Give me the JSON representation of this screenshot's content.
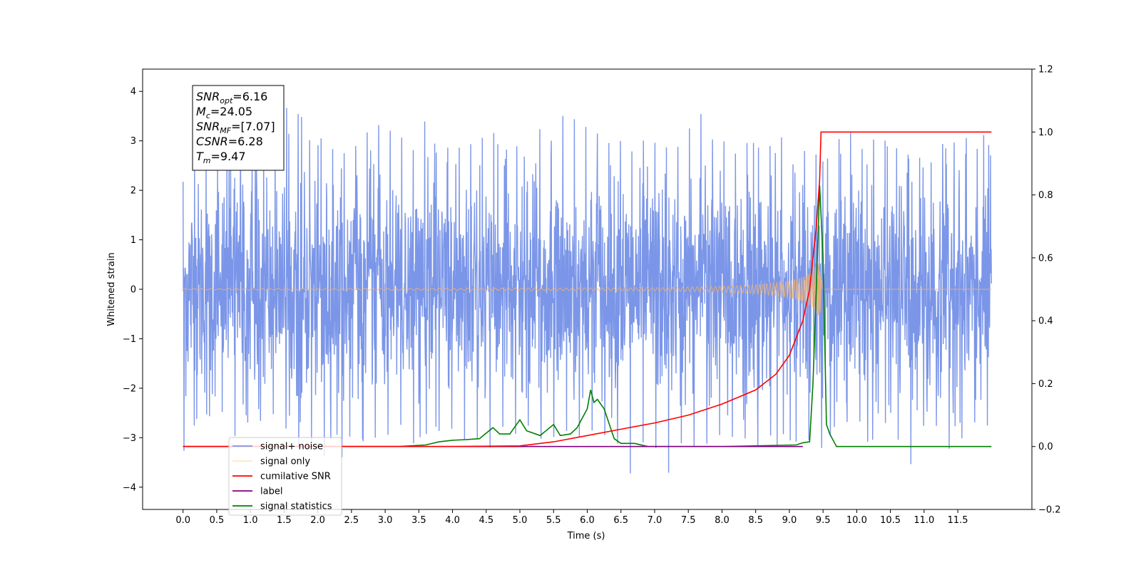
{
  "chart_data": {
    "type": "line",
    "xlabel": "Time (s)",
    "ylabel": "Whitened strain",
    "xlim": [
      -0.6,
      12.6
    ],
    "ylim": [
      -4.45,
      4.45
    ],
    "y2lim": [
      -0.2,
      1.2
    ],
    "x_ticks": [
      "0.0",
      "0.5",
      "1.0",
      "1.5",
      "2.0",
      "2.5",
      "3.0",
      "3.5",
      "4.0",
      "4.5",
      "5.0",
      "5.5",
      "6.0",
      "6.5",
      "7.0",
      "7.5",
      "8.0",
      "8.5",
      "9.0",
      "9.5",
      "10.0",
      "10.5",
      "11.0",
      "11.5"
    ],
    "y_ticks": [
      "−4",
      "−3",
      "−2",
      "−1",
      "0",
      "1",
      "2",
      "3",
      "4"
    ],
    "y2_ticks": [
      "−0.2",
      "0.0",
      "0.2",
      "0.4",
      "0.6",
      "0.8",
      "1.0",
      "1.2"
    ],
    "grid": false,
    "legend_position": "lower-left",
    "annotation": {
      "lines": [
        {
          "sym": "SNR",
          "sub": "opt",
          "val": "=6.16"
        },
        {
          "sym": "M",
          "sub": "c",
          "val": "=24.05"
        },
        {
          "sym": "SNR",
          "sub": "MF",
          "val": "=[7.07]"
        },
        {
          "sym": "CSNR",
          "sub": "",
          "val": "=6.28"
        },
        {
          "sym": "T",
          "sub": "m",
          "val": "=9.47"
        }
      ]
    },
    "legend": [
      {
        "label": "signal+ noise",
        "color": "#7b96e8"
      },
      {
        "label": "signal only",
        "color": "#ffbe66"
      },
      {
        "label": "cumilative SNR",
        "color": "#ff0000"
      },
      {
        "label": "label",
        "color": "#800080"
      },
      {
        "label": "signal statistics",
        "color": "#008000"
      }
    ],
    "series": [
      {
        "name": "signal+ noise",
        "axis": "left",
        "color": "#7b96e8",
        "x_range": [
          0.0,
          12.0
        ],
        "envelope_upper": [
          2.3,
          2.9,
          3.3,
          3.1,
          3.0,
          2.8,
          3.0,
          3.2,
          3.9,
          3.4,
          3.1,
          3.0,
          3.2,
          3.1,
          3.3,
          3.5,
          3.0,
          3.3,
          3.4,
          3.1,
          3.1,
          3.5,
          3.1,
          3.3,
          3.0,
          3.0,
          3.2,
          3.3,
          3.6,
          3.5,
          3.4,
          3.2,
          3.2,
          3.3,
          3.2,
          3.0,
          3.2,
          3.3,
          3.5,
          3.6,
          3.3,
          3.2,
          3.0,
          3.2,
          3.3,
          2.9,
          3.1,
          3.0,
          3.1,
          3.2,
          3.2,
          3.0,
          3.2,
          3.1,
          2.9,
          3.0,
          3.0,
          3.1,
          3.2,
          3.3,
          3.0
        ],
        "envelope_lower": [
          -3.4,
          -2.7,
          -2.9,
          -2.8,
          -3.0,
          -2.9,
          -2.7,
          -3.0,
          -3.3,
          -3.2,
          -3.3,
          -3.5,
          -3.4,
          -3.0,
          -3.4,
          -3.1,
          -3.2,
          -3.1,
          -3.3,
          -3.1,
          -3.0,
          -3.1,
          -3.2,
          -3.3,
          -3.1,
          -3.3,
          -3.1,
          -3.1,
          -3.0,
          -3.2,
          -3.3,
          -3.1,
          -3.5,
          -4.1,
          -3.4,
          -3.2,
          -3.9,
          -3.1,
          -3.3,
          -3.2,
          -3.3,
          -3.1,
          -3.0,
          -3.4,
          -3.2,
          -3.1,
          -3.2,
          -3.4,
          -3.3,
          -2.9,
          -3.0,
          -3.1,
          -3.2,
          -3.0,
          -4.0,
          -3.2,
          -3.0,
          -3.6,
          -3.1,
          -3.1,
          -3.1
        ]
      },
      {
        "name": "signal only",
        "axis": "left",
        "color": "#f5b16a",
        "x": [
          0.0,
          7.0,
          8.0,
          8.5,
          9.0,
          9.2,
          9.3,
          9.4,
          9.45,
          9.5,
          12.0
        ],
        "amplitude": [
          0.01,
          0.03,
          0.06,
          0.09,
          0.17,
          0.25,
          0.33,
          0.5,
          0.55,
          0.0,
          0.0
        ]
      },
      {
        "name": "cumilative SNR",
        "axis": "right",
        "color": "#ff0000",
        "x": [
          0.0,
          4.0,
          5.0,
          5.5,
          6.0,
          6.5,
          7.0,
          7.5,
          8.0,
          8.5,
          8.8,
          9.0,
          9.2,
          9.3,
          9.4,
          9.45,
          9.47,
          9.48,
          12.0
        ],
        "y": [
          0.0,
          0.0,
          0.002,
          0.015,
          0.035,
          0.055,
          0.075,
          0.1,
          0.135,
          0.18,
          0.23,
          0.29,
          0.4,
          0.5,
          0.7,
          0.85,
          1.0,
          1.0,
          1.0
        ]
      },
      {
        "name": "label",
        "axis": "right",
        "color": "#800080",
        "x": [
          0.0,
          9.2
        ],
        "y": [
          0.0,
          0.0
        ]
      },
      {
        "name": "signal statistics",
        "axis": "right",
        "color": "#008000",
        "x": [
          0.0,
          3.2,
          3.6,
          3.8,
          4.0,
          4.2,
          4.4,
          4.6,
          4.7,
          4.85,
          5.0,
          5.1,
          5.3,
          5.5,
          5.6,
          5.75,
          5.85,
          6.0,
          6.05,
          6.1,
          6.15,
          6.25,
          6.4,
          6.5,
          6.7,
          6.9,
          8.0,
          9.1,
          9.2,
          9.3,
          9.35,
          9.4,
          9.45,
          9.5,
          9.55,
          9.6,
          9.7,
          12.0
        ],
        "y": [
          0.0,
          0.0,
          0.005,
          0.015,
          0.02,
          0.022,
          0.025,
          0.06,
          0.04,
          0.04,
          0.085,
          0.05,
          0.035,
          0.07,
          0.035,
          0.04,
          0.06,
          0.12,
          0.18,
          0.14,
          0.15,
          0.12,
          0.025,
          0.01,
          0.01,
          0.0,
          0.0,
          0.005,
          0.012,
          0.015,
          0.2,
          0.5,
          0.83,
          0.6,
          0.07,
          0.04,
          0.0,
          0.0
        ]
      }
    ]
  }
}
